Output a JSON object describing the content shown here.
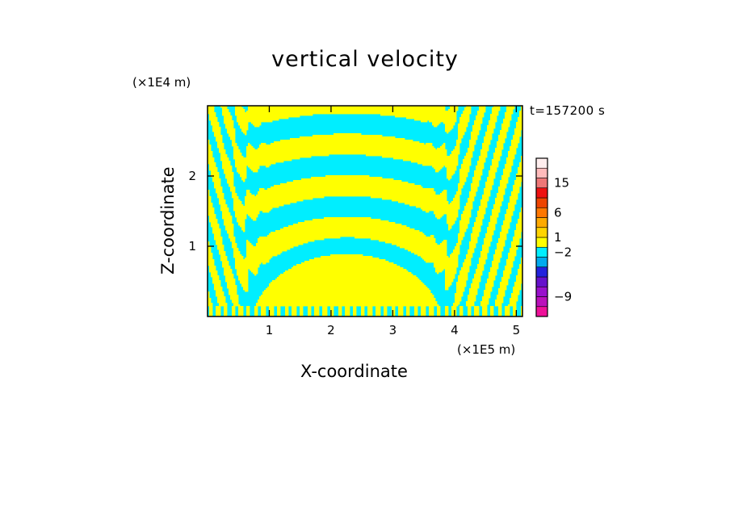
{
  "chart_data": {
    "type": "heatmap",
    "title": "vertical velocity",
    "xlabel": "X-coordinate",
    "ylabel": "Z-coordinate",
    "x_unit": "(×1E5 m)",
    "z_unit": "(×1E4 m)",
    "timestamp": "t=157200 s",
    "x_ticks": [
      {
        "value": 1,
        "label": "1"
      },
      {
        "value": 2,
        "label": "2"
      },
      {
        "value": 3,
        "label": "3"
      },
      {
        "value": 4,
        "label": "4"
      },
      {
        "value": 5,
        "label": "5"
      }
    ],
    "z_ticks": [
      {
        "value": 1,
        "label": "1"
      },
      {
        "value": 2,
        "label": "2"
      }
    ],
    "xlim": [
      0,
      5.1
    ],
    "zlim": [
      0,
      3.0
    ],
    "colorbar": {
      "levels": [
        {
          "color": "#ee1199"
        },
        {
          "color": "#bb11bb"
        },
        {
          "color": "#9911cc"
        },
        {
          "color": "#6611cc"
        },
        {
          "color": "#2222dd"
        },
        {
          "color": "#00aaee"
        },
        {
          "color": "#00eeff"
        },
        {
          "color": "#ffff00"
        },
        {
          "color": "#ffd400"
        },
        {
          "color": "#ffaa00"
        },
        {
          "color": "#ff7700"
        },
        {
          "color": "#ee4400"
        },
        {
          "color": "#ee1111"
        },
        {
          "color": "#ee7777"
        },
        {
          "color": "#ffbbbb"
        },
        {
          "color": "#ffeeee"
        }
      ],
      "labels": [
        {
          "text": "15",
          "level": 13.5
        },
        {
          "text": "6",
          "level": 10.5
        },
        {
          "text": "1",
          "level": 8.0
        },
        {
          "text": "−2",
          "level": 6.5
        },
        {
          "text": "−9",
          "level": 2.0
        }
      ]
    },
    "field_colors": {
      "positive": "#ffff00",
      "negative": "#00eeff",
      "minor": "#33aa77"
    }
  }
}
